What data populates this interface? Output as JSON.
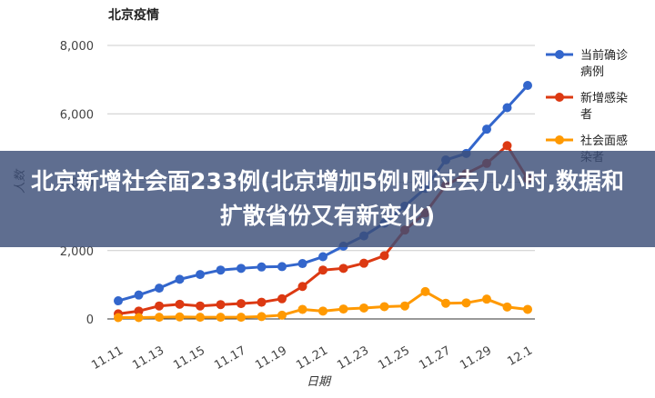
{
  "chart_data": {
    "type": "line",
    "title": "北京疫情",
    "xlabel": "日期",
    "ylabel": "人数",
    "categories": [
      "11.11",
      "11.12",
      "11.13",
      "11.14",
      "11.15",
      "11.16",
      "11.17",
      "11.18",
      "11.19",
      "11.20",
      "11.21",
      "11.22",
      "11.23",
      "11.24",
      "11.25",
      "11.26",
      "11.27",
      "11.28",
      "11.29",
      "11.30",
      "12.1"
    ],
    "x_tick_labels": [
      "11.11",
      "11.13",
      "11.15",
      "11.17",
      "11.19",
      "11.21",
      "11.23",
      "11.25",
      "11.27",
      "11.29",
      "12.1"
    ],
    "y_ticks": [
      "0",
      "2,000",
      "4,000",
      "6,000",
      "8,000"
    ],
    "ylim": [
      0,
      8000
    ],
    "grid": true,
    "legend_position": "right",
    "series": [
      {
        "name": "当前确诊病例",
        "color": "#3366cc",
        "values": [
          530,
          700,
          900,
          1160,
          1300,
          1430,
          1480,
          1520,
          1530,
          1620,
          1820,
          2130,
          2430,
          2800,
          3300,
          3820,
          4650,
          4840,
          5550,
          6180,
          6830
        ]
      },
      {
        "name": "新增感染者",
        "color": "#dc3912",
        "values": [
          150,
          230,
          380,
          430,
          380,
          420,
          450,
          490,
          590,
          950,
          1430,
          1480,
          1630,
          1850,
          2600,
          3100,
          3900,
          4250,
          4550,
          5070,
          4100
        ]
      },
      {
        "name": "社会面感染者",
        "color": "#ff9900",
        "values": [
          40,
          40,
          50,
          60,
          50,
          50,
          50,
          70,
          110,
          280,
          230,
          290,
          320,
          360,
          380,
          800,
          460,
          470,
          580,
          350,
          280
        ]
      }
    ]
  },
  "overlay": {
    "headline": "北京新增社会面233例(北京增加5例!刚过去几小时,数据和扩散省份又有新变化)"
  }
}
